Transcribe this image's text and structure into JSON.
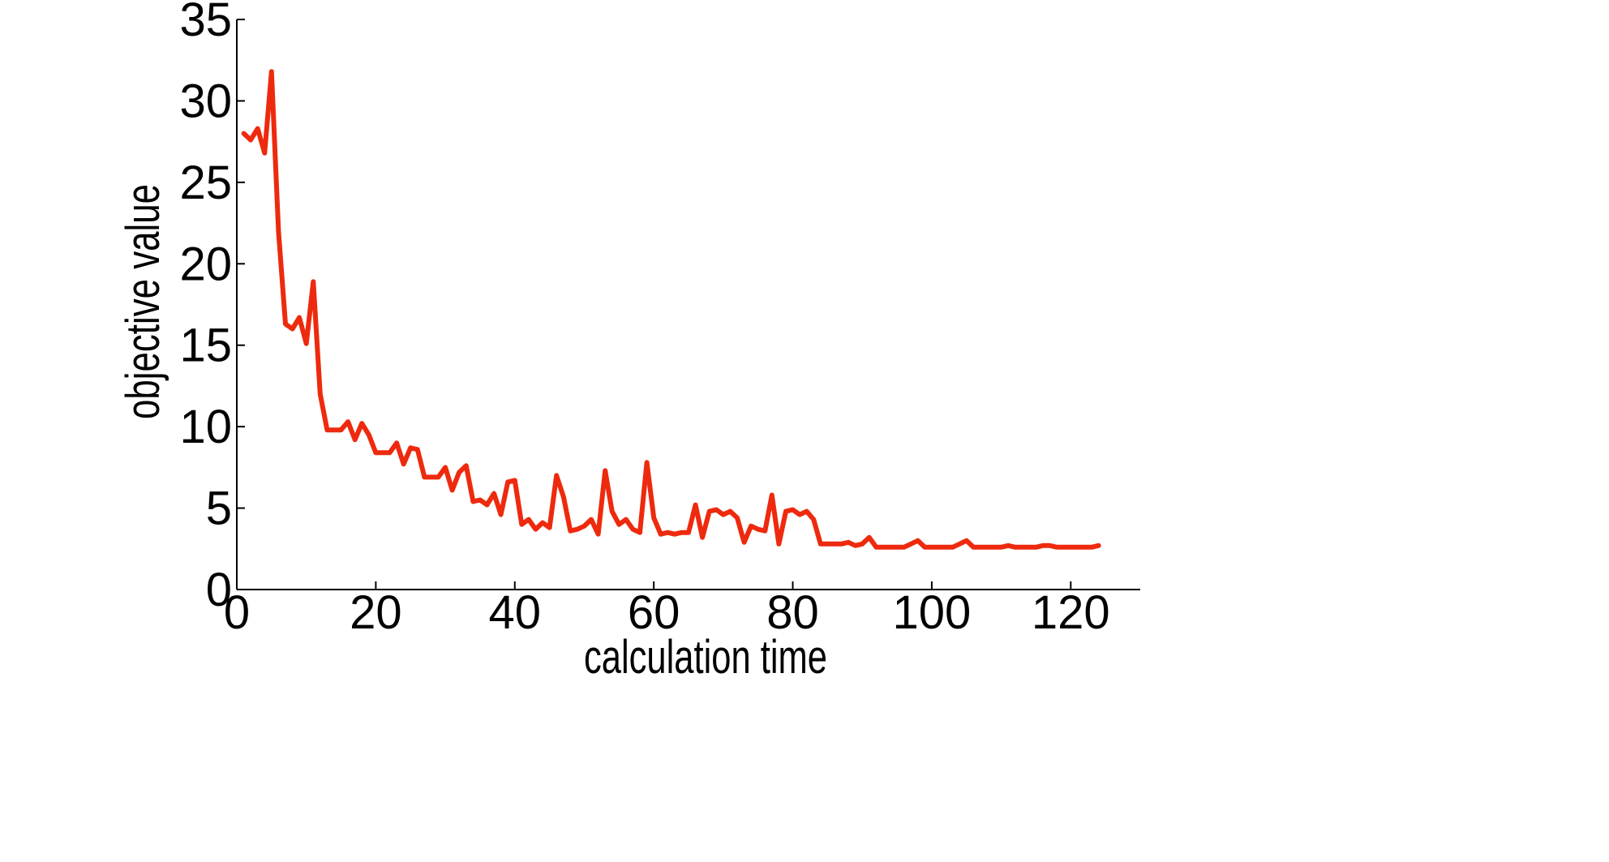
{
  "chart_data": {
    "type": "line",
    "title": "",
    "xlabel": "calculation time",
    "ylabel": "objective value",
    "xlim": [
      0,
      130
    ],
    "ylim": [
      0,
      35
    ],
    "xticks": [
      0,
      20,
      40,
      60,
      80,
      100,
      120
    ],
    "yticks": [
      0,
      5,
      10,
      15,
      20,
      25,
      30,
      35
    ],
    "xtick_labels": [
      "0",
      "20",
      "40",
      "60",
      "80",
      "100",
      "120"
    ],
    "ytick_labels": [
      "0",
      "5",
      "10",
      "15",
      "20",
      "25",
      "30",
      "35"
    ],
    "grid": false,
    "legend": "none",
    "colors": {
      "line": "#ee2a0e",
      "axes": "#000000"
    },
    "series": [
      {
        "x": [
          1,
          2,
          3,
          4,
          5,
          6,
          7,
          8,
          9,
          10,
          11,
          12,
          13,
          14,
          15,
          16,
          17,
          18,
          19,
          20,
          21,
          22,
          23,
          24,
          25,
          26,
          27,
          28,
          29,
          30,
          31,
          32,
          33,
          34,
          35,
          36,
          37,
          38,
          39,
          40,
          41,
          42,
          43,
          44,
          45,
          46,
          47,
          48,
          49,
          50,
          51,
          52,
          53,
          54,
          55,
          56,
          57,
          58,
          59,
          60,
          61,
          62,
          63,
          64,
          65,
          66,
          67,
          68,
          69,
          70,
          71,
          72,
          73,
          74,
          75,
          76,
          77,
          78,
          79,
          80,
          81,
          82,
          83,
          84,
          85,
          86,
          87,
          88,
          89,
          90,
          91,
          92,
          93,
          94,
          95,
          96,
          97,
          98,
          99,
          100,
          101,
          102,
          103,
          104,
          105,
          106,
          107,
          108,
          109,
          110,
          111,
          112,
          113,
          114,
          115,
          116,
          117,
          118,
          119,
          120,
          121,
          122,
          123,
          124
        ],
        "y": [
          28.0,
          27.6,
          28.3,
          26.8,
          31.8,
          22.0,
          16.3,
          16.0,
          16.7,
          15.1,
          18.9,
          12.0,
          9.8,
          9.8,
          9.8,
          10.3,
          9.2,
          10.2,
          9.5,
          8.4,
          8.4,
          8.4,
          9.0,
          7.7,
          8.7,
          8.6,
          6.9,
          6.9,
          6.9,
          7.5,
          6.1,
          7.2,
          7.6,
          5.4,
          5.5,
          5.2,
          5.9,
          4.6,
          6.6,
          6.7,
          4.0,
          4.3,
          3.7,
          4.1,
          3.8,
          7.0,
          5.7,
          3.6,
          3.7,
          3.9,
          4.3,
          3.4,
          7.3,
          4.8,
          4.0,
          4.3,
          3.7,
          3.5,
          7.8,
          4.4,
          3.4,
          3.5,
          3.4,
          3.5,
          3.5,
          5.2,
          3.2,
          4.8,
          4.9,
          4.6,
          4.8,
          4.4,
          2.9,
          3.9,
          3.7,
          3.6,
          5.8,
          2.8,
          4.8,
          4.9,
          4.6,
          4.8,
          4.3,
          2.8,
          2.8,
          2.8,
          2.8,
          2.9,
          2.7,
          2.8,
          3.2,
          2.6,
          2.6,
          2.6,
          2.6,
          2.6,
          2.8,
          3.0,
          2.6,
          2.6,
          2.6,
          2.6,
          2.6,
          2.8,
          3.0,
          2.6,
          2.6,
          2.6,
          2.6,
          2.6,
          2.7,
          2.6,
          2.6,
          2.6,
          2.6,
          2.7,
          2.7,
          2.6,
          2.6,
          2.6,
          2.6,
          2.6,
          2.6,
          2.7
        ]
      }
    ]
  }
}
